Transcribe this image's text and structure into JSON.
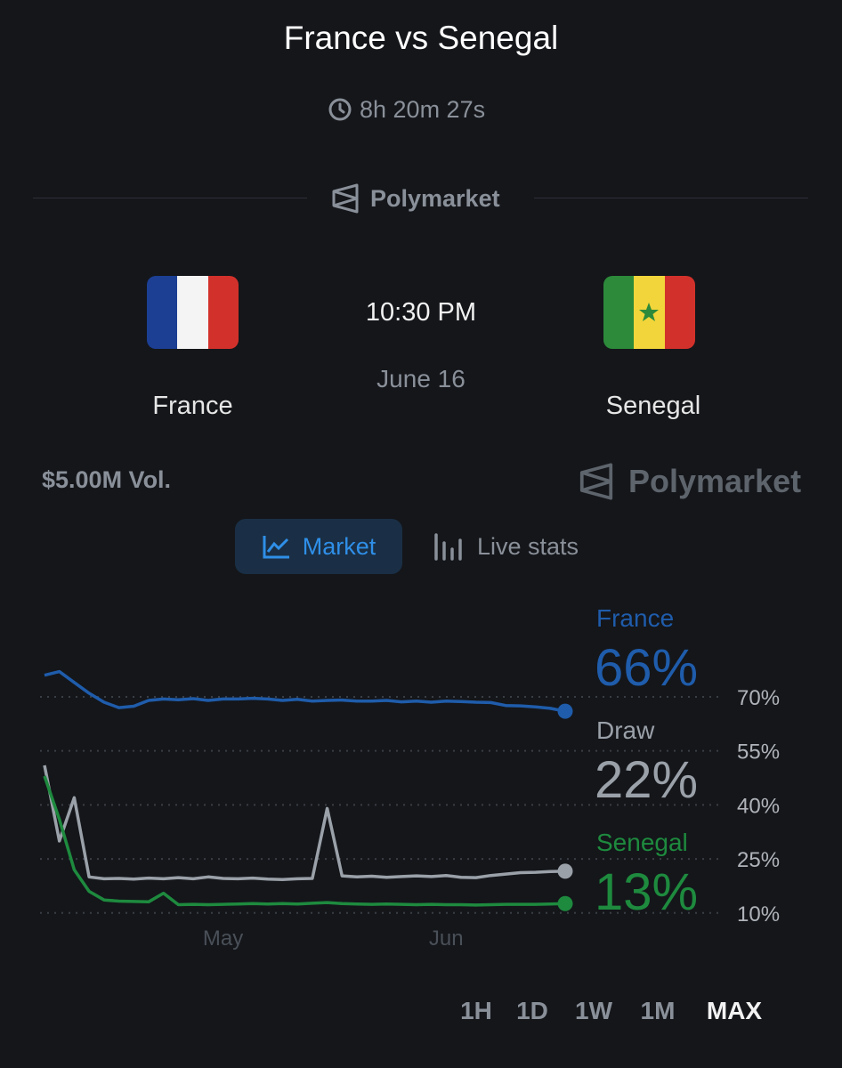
{
  "header": {
    "title": "France vs Senegal",
    "countdown": "8h 20m 27s",
    "source": "Polymarket"
  },
  "match": {
    "home": "France",
    "away": "Senegal",
    "time": "10:30 PM",
    "date": "June 16"
  },
  "market": {
    "volume": "$5.00M Vol.",
    "brand": "Polymarket",
    "tabs": [
      "Market",
      "Live stats"
    ],
    "selected_tab": "Market",
    "ranges": [
      "1H",
      "1D",
      "1W",
      "1M",
      "MAX"
    ],
    "selected_range": "MAX"
  },
  "chart_data": {
    "type": "line",
    "categories": [
      null,
      null,
      null,
      null,
      null,
      null,
      null,
      null,
      null,
      null,
      null,
      null,
      "May",
      null,
      null,
      null,
      null,
      null,
      null,
      null,
      null,
      null,
      null,
      null,
      null,
      null,
      null,
      "Jun",
      null,
      null,
      null,
      null,
      null,
      null,
      null,
      null
    ],
    "ylim": [
      6,
      80
    ],
    "yticks": [
      {
        "value": 10,
        "label": "10%"
      },
      {
        "value": 25,
        "label": "25%"
      },
      {
        "value": 40,
        "label": "40%"
      },
      {
        "value": 55,
        "label": "55%"
      },
      {
        "value": 70,
        "label": "70%"
      }
    ],
    "grid": true,
    "series": [
      {
        "name": "France",
        "color": "#1f5cab",
        "values": [
          76,
          77,
          74,
          71,
          68.5,
          67,
          67.4,
          69,
          69.4,
          69.2,
          69.5,
          69,
          69.4,
          69.4,
          69.6,
          69.4,
          69,
          69.3,
          68.8,
          69,
          69.1,
          68.8,
          68.8,
          69,
          68.6,
          68.8,
          68.5,
          68.8,
          68.7,
          68.5,
          68.4,
          67.6,
          67.5,
          67.2,
          66.8,
          66
        ],
        "value_labels": [
          null,
          null,
          null,
          null,
          null,
          null,
          null,
          null,
          null,
          null,
          null,
          null,
          null,
          null,
          null,
          null,
          null,
          null,
          null,
          null,
          null,
          null,
          null,
          null,
          null,
          null,
          null,
          null,
          null,
          null,
          null,
          null,
          null,
          null,
          null,
          "66%"
        ]
      },
      {
        "name": "Draw",
        "color": "#9ba1a9",
        "values": [
          51,
          30,
          42,
          20,
          19.5,
          19.6,
          19.4,
          19.7,
          19.5,
          19.8,
          19.5,
          20,
          19.6,
          19.5,
          19.7,
          19.4,
          19.3,
          19.5,
          19.6,
          39,
          20.3,
          20,
          20.2,
          19.9,
          20.1,
          20.3,
          20.1,
          20.4,
          19.9,
          19.8,
          20.4,
          20.8,
          21.2,
          21.3,
          21.5,
          21.6
        ],
        "value_labels": [
          null,
          null,
          null,
          null,
          null,
          null,
          null,
          null,
          null,
          null,
          null,
          null,
          null,
          null,
          null,
          null,
          null,
          null,
          null,
          null,
          null,
          null,
          null,
          null,
          null,
          null,
          null,
          null,
          null,
          null,
          null,
          null,
          null,
          null,
          null,
          "22%"
        ]
      },
      {
        "name": "Senegal",
        "color": "#1e8a3e",
        "values": [
          48,
          36,
          22,
          16,
          13.6,
          13.3,
          13.2,
          13.1,
          15.5,
          12.3,
          12.4,
          12.3,
          12.4,
          12.5,
          12.6,
          12.5,
          12.6,
          12.5,
          12.7,
          12.9,
          12.6,
          12.5,
          12.4,
          12.5,
          12.4,
          12.3,
          12.4,
          12.3,
          12.3,
          12.2,
          12.3,
          12.4,
          12.4,
          12.4,
          12.5,
          12.6
        ],
        "value_labels": [
          null,
          null,
          null,
          null,
          null,
          null,
          null,
          null,
          null,
          null,
          null,
          null,
          null,
          null,
          null,
          null,
          null,
          null,
          null,
          null,
          null,
          null,
          null,
          null,
          null,
          null,
          null,
          null,
          null,
          null,
          null,
          null,
          null,
          null,
          null,
          "13%"
        ]
      }
    ]
  }
}
